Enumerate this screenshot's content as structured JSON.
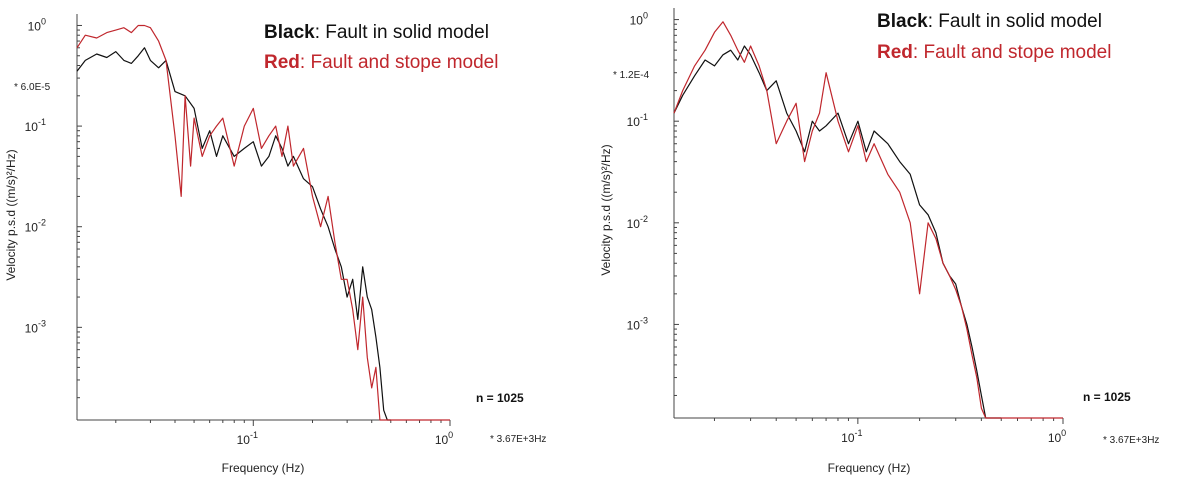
{
  "colors": {
    "black_series": "#111111",
    "red_series": "#c0272d",
    "axis": "#444444"
  },
  "chart_data": [
    {
      "type": "line",
      "xscale": "log",
      "yscale": "log",
      "xlim": [
        0.0127,
        1.0
      ],
      "ylim": [
        0.00012,
        1.3
      ],
      "xlabel": "Frequency  (Hz)",
      "ylabel": "Velocity p.s.d  ((m/s)²/Hz)",
      "xticks": [
        {
          "value": 0.1,
          "label": "10",
          "exp": "-1"
        },
        {
          "value": 1.0,
          "label": "10",
          "exp": "0"
        }
      ],
      "yticks": [
        {
          "value": 1.0,
          "label": "10",
          "exp": "0"
        },
        {
          "value": 0.1,
          "label": "10",
          "exp": "-1"
        },
        {
          "value": 0.01,
          "label": "10",
          "exp": "-2"
        },
        {
          "value": 0.001,
          "label": "10",
          "exp": "-3"
        }
      ],
      "scale_note": "* 6.0E-5",
      "freq_note": "* 3.67E+3Hz",
      "n_label": "n = 1025",
      "legend": [
        {
          "key": "Black",
          "text": ": Fault in solid model",
          "color": "#111111"
        },
        {
          "key": "Red",
          "text": ": Fault and stope model",
          "color": "#c0272d"
        }
      ],
      "series": [
        {
          "name": "Black",
          "color": "#111111",
          "x": [
            0.0127,
            0.014,
            0.016,
            0.018,
            0.02,
            0.022,
            0.024,
            0.026,
            0.028,
            0.03,
            0.033,
            0.036,
            0.04,
            0.045,
            0.05,
            0.055,
            0.06,
            0.065,
            0.07,
            0.08,
            0.09,
            0.1,
            0.11,
            0.12,
            0.13,
            0.14,
            0.15,
            0.16,
            0.18,
            0.2,
            0.22,
            0.24,
            0.26,
            0.28,
            0.3,
            0.32,
            0.34,
            0.36,
            0.38,
            0.4,
            0.42,
            0.44,
            0.46,
            0.48,
            0.5
          ],
          "y": [
            0.35,
            0.45,
            0.52,
            0.48,
            0.55,
            0.45,
            0.42,
            0.5,
            0.6,
            0.45,
            0.38,
            0.45,
            0.22,
            0.2,
            0.15,
            0.06,
            0.09,
            0.05,
            0.08,
            0.05,
            0.06,
            0.07,
            0.04,
            0.05,
            0.08,
            0.06,
            0.04,
            0.05,
            0.03,
            0.025,
            0.015,
            0.01,
            0.006,
            0.004,
            0.002,
            0.003,
            0.0012,
            0.004,
            0.002,
            0.0015,
            0.0008,
            0.0004,
            0.00015,
            0.00012,
            0.00012
          ]
        },
        {
          "name": "Red",
          "color": "#c0272d",
          "x": [
            0.0127,
            0.014,
            0.016,
            0.018,
            0.02,
            0.022,
            0.024,
            0.026,
            0.028,
            0.03,
            0.033,
            0.036,
            0.04,
            0.043,
            0.045,
            0.048,
            0.05,
            0.055,
            0.06,
            0.065,
            0.07,
            0.08,
            0.09,
            0.1,
            0.11,
            0.12,
            0.13,
            0.14,
            0.15,
            0.16,
            0.18,
            0.2,
            0.22,
            0.24,
            0.26,
            0.28,
            0.3,
            0.32,
            0.34,
            0.36,
            0.38,
            0.4,
            0.42,
            0.44,
            0.46,
            0.5,
            0.6,
            0.8,
            1.0
          ],
          "y": [
            0.6,
            0.8,
            0.75,
            0.85,
            0.9,
            0.95,
            0.85,
            1.0,
            1.0,
            0.95,
            0.7,
            0.45,
            0.08,
            0.02,
            0.2,
            0.04,
            0.12,
            0.05,
            0.08,
            0.1,
            0.12,
            0.04,
            0.1,
            0.15,
            0.06,
            0.08,
            0.1,
            0.05,
            0.1,
            0.04,
            0.06,
            0.02,
            0.01,
            0.02,
            0.007,
            0.003,
            0.003,
            0.0015,
            0.0006,
            0.002,
            0.0005,
            0.00025,
            0.0004,
            0.00012,
            0.00012,
            0.00012,
            0.00012,
            0.00012,
            0.00012
          ]
        }
      ]
    },
    {
      "type": "line",
      "xscale": "log",
      "yscale": "log",
      "xlim": [
        0.0127,
        1.0
      ],
      "ylim": [
        0.00012,
        1.3
      ],
      "xlabel": "Frequency  (Hz)",
      "ylabel": "Velocity p.s.d  ((m/s)²/Hz)",
      "xticks": [
        {
          "value": 0.1,
          "label": "10",
          "exp": "-1"
        },
        {
          "value": 1.0,
          "label": "10",
          "exp": "0"
        }
      ],
      "yticks": [
        {
          "value": 1.0,
          "label": "10",
          "exp": "0"
        },
        {
          "value": 0.1,
          "label": "10",
          "exp": "-1"
        },
        {
          "value": 0.01,
          "label": "10",
          "exp": "-2"
        },
        {
          "value": 0.001,
          "label": "10",
          "exp": "-3"
        }
      ],
      "scale_note": "* 1.2E-4",
      "freq_note": "* 3.67E+3Hz",
      "n_label": "n = 1025",
      "legend": [
        {
          "key": "Black",
          "text": ": Fault in solid model",
          "color": "#111111"
        },
        {
          "key": "Red",
          "text": ": Fault and stope model",
          "color": "#c0272d"
        }
      ],
      "series": [
        {
          "name": "Black",
          "color": "#111111",
          "x": [
            0.0127,
            0.014,
            0.016,
            0.018,
            0.02,
            0.022,
            0.024,
            0.026,
            0.028,
            0.03,
            0.033,
            0.036,
            0.04,
            0.045,
            0.05,
            0.055,
            0.06,
            0.065,
            0.07,
            0.08,
            0.09,
            0.1,
            0.11,
            0.12,
            0.14,
            0.16,
            0.18,
            0.2,
            0.22,
            0.24,
            0.26,
            0.28,
            0.3,
            0.32,
            0.34,
            0.36,
            0.38,
            0.4,
            0.42,
            0.44,
            0.46,
            0.48,
            0.5
          ],
          "y": [
            0.12,
            0.18,
            0.28,
            0.4,
            0.35,
            0.45,
            0.5,
            0.4,
            0.55,
            0.45,
            0.3,
            0.2,
            0.25,
            0.12,
            0.08,
            0.05,
            0.1,
            0.08,
            0.09,
            0.12,
            0.06,
            0.1,
            0.05,
            0.08,
            0.06,
            0.04,
            0.03,
            0.015,
            0.012,
            0.008,
            0.004,
            0.003,
            0.0025,
            0.0015,
            0.001,
            0.0006,
            0.00035,
            0.0002,
            0.00012,
            0.00012,
            0.00012,
            0.00012,
            0.00012
          ]
        },
        {
          "name": "Red",
          "color": "#c0272d",
          "x": [
            0.0127,
            0.014,
            0.016,
            0.018,
            0.02,
            0.022,
            0.024,
            0.026,
            0.028,
            0.03,
            0.033,
            0.036,
            0.04,
            0.045,
            0.05,
            0.055,
            0.06,
            0.065,
            0.07,
            0.08,
            0.09,
            0.1,
            0.11,
            0.12,
            0.14,
            0.16,
            0.18,
            0.2,
            0.22,
            0.24,
            0.26,
            0.28,
            0.3,
            0.32,
            0.34,
            0.36,
            0.38,
            0.4,
            0.42,
            0.44,
            0.46,
            0.5,
            0.6,
            0.8,
            1.0
          ],
          "y": [
            0.12,
            0.2,
            0.35,
            0.5,
            0.75,
            0.95,
            0.7,
            0.5,
            0.38,
            0.55,
            0.35,
            0.2,
            0.06,
            0.1,
            0.15,
            0.04,
            0.08,
            0.12,
            0.3,
            0.1,
            0.05,
            0.09,
            0.04,
            0.06,
            0.03,
            0.02,
            0.01,
            0.002,
            0.01,
            0.007,
            0.004,
            0.003,
            0.0022,
            0.0015,
            0.0009,
            0.0005,
            0.0003,
            0.00015,
            0.00012,
            0.00012,
            0.00012,
            0.00012,
            0.00012,
            0.00012,
            0.00012
          ]
        }
      ]
    }
  ]
}
